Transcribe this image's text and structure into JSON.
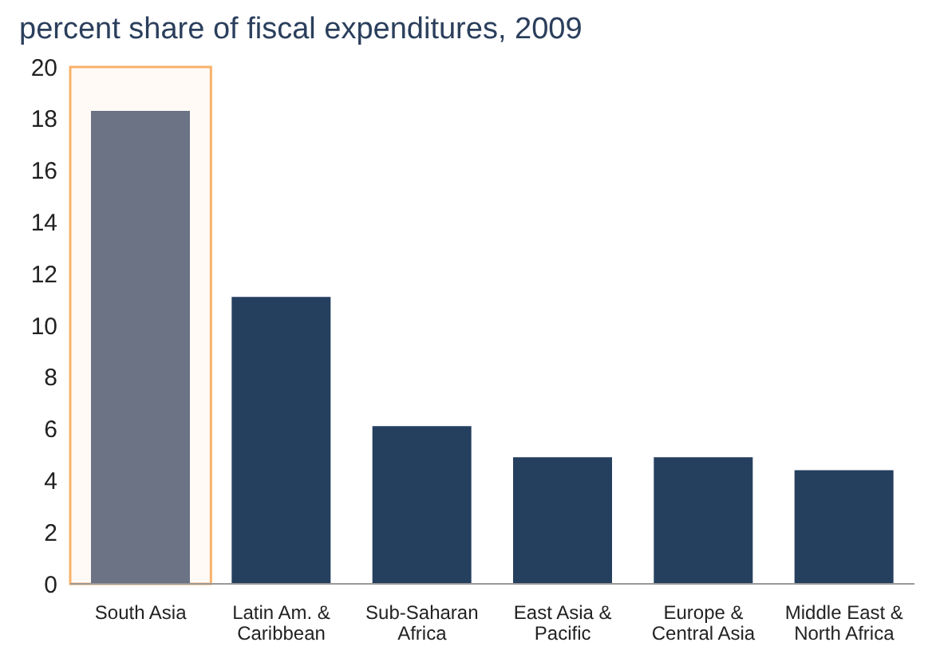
{
  "chart_data": {
    "type": "bar",
    "title": "percent share of fiscal expenditures, 2009",
    "categories": [
      "South Asia",
      "Latin Am. & Caribbean",
      "Sub-Saharan Africa",
      "East Asia & Pacific",
      "Europe & Central Asia",
      "Middle East & North Africa"
    ],
    "values": [
      18.3,
      11.1,
      6.1,
      4.9,
      4.9,
      4.4
    ],
    "colors": [
      "#6b7385",
      "#253f5f",
      "#253f5f",
      "#253f5f",
      "#253f5f",
      "#253f5f"
    ],
    "ylim": [
      0,
      20
    ],
    "yticks": [
      0,
      2,
      4,
      6,
      8,
      10,
      12,
      14,
      16,
      18,
      20
    ],
    "grid": false,
    "bands": [
      {
        "axis": "x",
        "from": "South Asia",
        "to": "South Asia",
        "color": "#f7b169"
      }
    ]
  }
}
